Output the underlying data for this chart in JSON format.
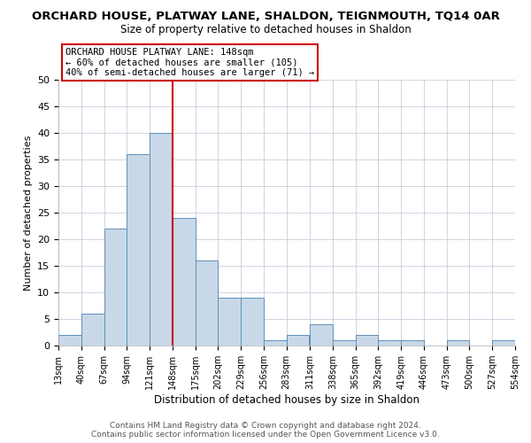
{
  "title": "ORCHARD HOUSE, PLATWAY LANE, SHALDON, TEIGNMOUTH, TQ14 0AR",
  "subtitle": "Size of property relative to detached houses in Shaldon",
  "xlabel": "Distribution of detached houses by size in Shaldon",
  "ylabel": "Number of detached properties",
  "bin_edges": [
    13,
    40,
    67,
    94,
    121,
    148,
    175,
    202,
    229,
    256,
    283,
    311,
    338,
    365,
    392,
    419,
    446,
    473,
    500,
    527,
    554
  ],
  "bin_labels": [
    "13sqm",
    "40sqm",
    "67sqm",
    "94sqm",
    "121sqm",
    "148sqm",
    "175sqm",
    "202sqm",
    "229sqm",
    "256sqm",
    "283sqm",
    "311sqm",
    "338sqm",
    "365sqm",
    "392sqm",
    "419sqm",
    "446sqm",
    "473sqm",
    "500sqm",
    "527sqm",
    "554sqm"
  ],
  "counts": [
    2,
    6,
    22,
    36,
    40,
    24,
    16,
    9,
    9,
    1,
    2,
    4,
    1,
    2,
    1,
    1,
    0,
    1,
    0,
    1
  ],
  "bar_color": "#c8d8e8",
  "bar_edge_color": "#6090b8",
  "marker_value": 148,
  "marker_color": "#cc0000",
  "ylim": [
    0,
    50
  ],
  "annotation_title": "ORCHARD HOUSE PLATWAY LANE: 148sqm",
  "annotation_line1": "← 60% of detached houses are smaller (105)",
  "annotation_line2": "40% of semi-detached houses are larger (71) →",
  "annotation_box_color": "#ffffff",
  "annotation_box_edge_color": "#cc0000",
  "footer_line1": "Contains HM Land Registry data © Crown copyright and database right 2024.",
  "footer_line2": "Contains public sector information licensed under the Open Government Licence v3.0.",
  "background_color": "#ffffff",
  "grid_color": "#c8d0dc",
  "title_fontsize": 9.5,
  "subtitle_fontsize": 8.5,
  "ytick_fontsize": 8,
  "xtick_fontsize": 7,
  "ylabel_fontsize": 8,
  "xlabel_fontsize": 8.5,
  "annotation_fontsize": 7.5,
  "footer_fontsize": 6.5
}
